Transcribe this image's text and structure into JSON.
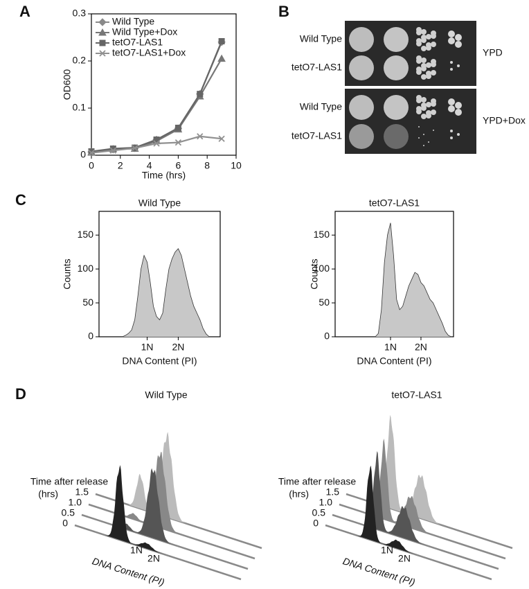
{
  "panel_labels": [
    "A",
    "B",
    "C",
    "D"
  ],
  "chart_data": [
    {
      "type": "line",
      "xlabel": "Time (hrs)",
      "ylabel": "OD600",
      "x": [
        0,
        1.5,
        3,
        4.5,
        6,
        7.5,
        9
      ],
      "series": [
        {
          "name": "Wild Type",
          "color": "#8a8a8a",
          "marker": "diamond",
          "values": [
            0.007,
            0.012,
            0.015,
            0.033,
            0.057,
            0.13,
            0.24
          ]
        },
        {
          "name": "Wild Type+Dox",
          "color": "#777777",
          "marker": "triangle",
          "values": [
            0.006,
            0.013,
            0.014,
            0.03,
            0.055,
            0.125,
            0.205
          ]
        },
        {
          "name": "tetO7-LAS1",
          "color": "#666666",
          "marker": "square",
          "values": [
            0.008,
            0.014,
            0.016,
            0.033,
            0.058,
            0.13,
            0.242
          ]
        },
        {
          "name": "tetO7-LAS1+Dox",
          "color": "#909090",
          "marker": "x",
          "values": [
            0.005,
            0.01,
            0.015,
            0.025,
            0.027,
            0.04,
            0.035
          ]
        }
      ],
      "xlim": [
        0,
        10
      ],
      "ylim": [
        0,
        0.3
      ],
      "xticks": [
        0,
        2,
        4,
        6,
        8,
        10
      ],
      "yticks": [
        0,
        0.1,
        0.2,
        0.3
      ]
    },
    {
      "type": "area",
      "title": "Wild Type",
      "xlabel": "DNA Content (PI)",
      "ylabel": "Counts",
      "color": "#c8c8c8",
      "x": [
        0.2,
        0.3,
        0.4,
        0.5,
        0.6,
        0.7,
        0.8,
        0.9,
        1.0,
        1.1,
        1.2,
        1.3,
        1.4,
        1.5,
        1.6,
        1.7,
        1.8,
        1.9,
        2.0,
        2.1,
        2.2,
        2.3,
        2.4,
        2.5,
        2.6,
        2.7,
        2.8,
        2.9,
        3.0
      ],
      "values": [
        0,
        2,
        5,
        10,
        25,
        60,
        100,
        120,
        110,
        80,
        45,
        30,
        25,
        35,
        70,
        100,
        115,
        125,
        130,
        120,
        100,
        80,
        60,
        45,
        35,
        25,
        12,
        4,
        0
      ],
      "xlim": [
        -0.55,
        3.35
      ],
      "ylim": [
        0,
        185
      ],
      "yticks": [
        0,
        50,
        100,
        150
      ],
      "xticks": [
        {
          "value": 1,
          "label": "1N"
        },
        {
          "value": 2,
          "label": "2N"
        }
      ]
    },
    {
      "type": "area",
      "title": "tetO7-LAS1",
      "xlabel": "DNA Content (PI)",
      "ylabel": "Counts",
      "color": "#c8c8c8",
      "x": [
        0.5,
        0.6,
        0.7,
        0.8,
        0.9,
        1.0,
        1.1,
        1.2,
        1.3,
        1.4,
        1.5,
        1.6,
        1.7,
        1.8,
        1.9,
        2.0,
        2.1,
        2.2,
        2.3,
        2.4,
        2.5,
        2.6,
        2.7,
        2.8,
        2.9,
        3.0
      ],
      "values": [
        0,
        5,
        40,
        110,
        150,
        168,
        120,
        55,
        40,
        45,
        60,
        75,
        85,
        95,
        92,
        80,
        75,
        65,
        55,
        50,
        40,
        30,
        20,
        8,
        2,
        0
      ],
      "xlim": [
        -0.82,
        3.07
      ],
      "ylim": [
        0,
        185
      ],
      "yticks": [
        0,
        50,
        100,
        150
      ],
      "xticks": [
        {
          "value": 1,
          "label": "1N"
        },
        {
          "value": 2,
          "label": "2N"
        }
      ]
    }
  ],
  "spot_assay": {
    "rows": [
      "Wild Type",
      "tetO7-LAS1",
      "Wild Type",
      "tetO7-LAS1"
    ],
    "media": [
      "YPD",
      "YPD+Dox"
    ]
  },
  "ridgeline": {
    "time_label": "Time after release",
    "time_unit": "(hrs)",
    "times": [
      "0",
      "0.5",
      "1.0",
      "1.5"
    ],
    "panels": [
      {
        "title": "Wild Type",
        "x_labels": [
          "1N",
          "2N"
        ],
        "xlabel": "DNA Content (PI)"
      },
      {
        "title": "tetO7-LAS1",
        "x_labels": [
          "1N",
          "2N"
        ],
        "xlabel": "DNA Content (PI)"
      }
    ]
  }
}
